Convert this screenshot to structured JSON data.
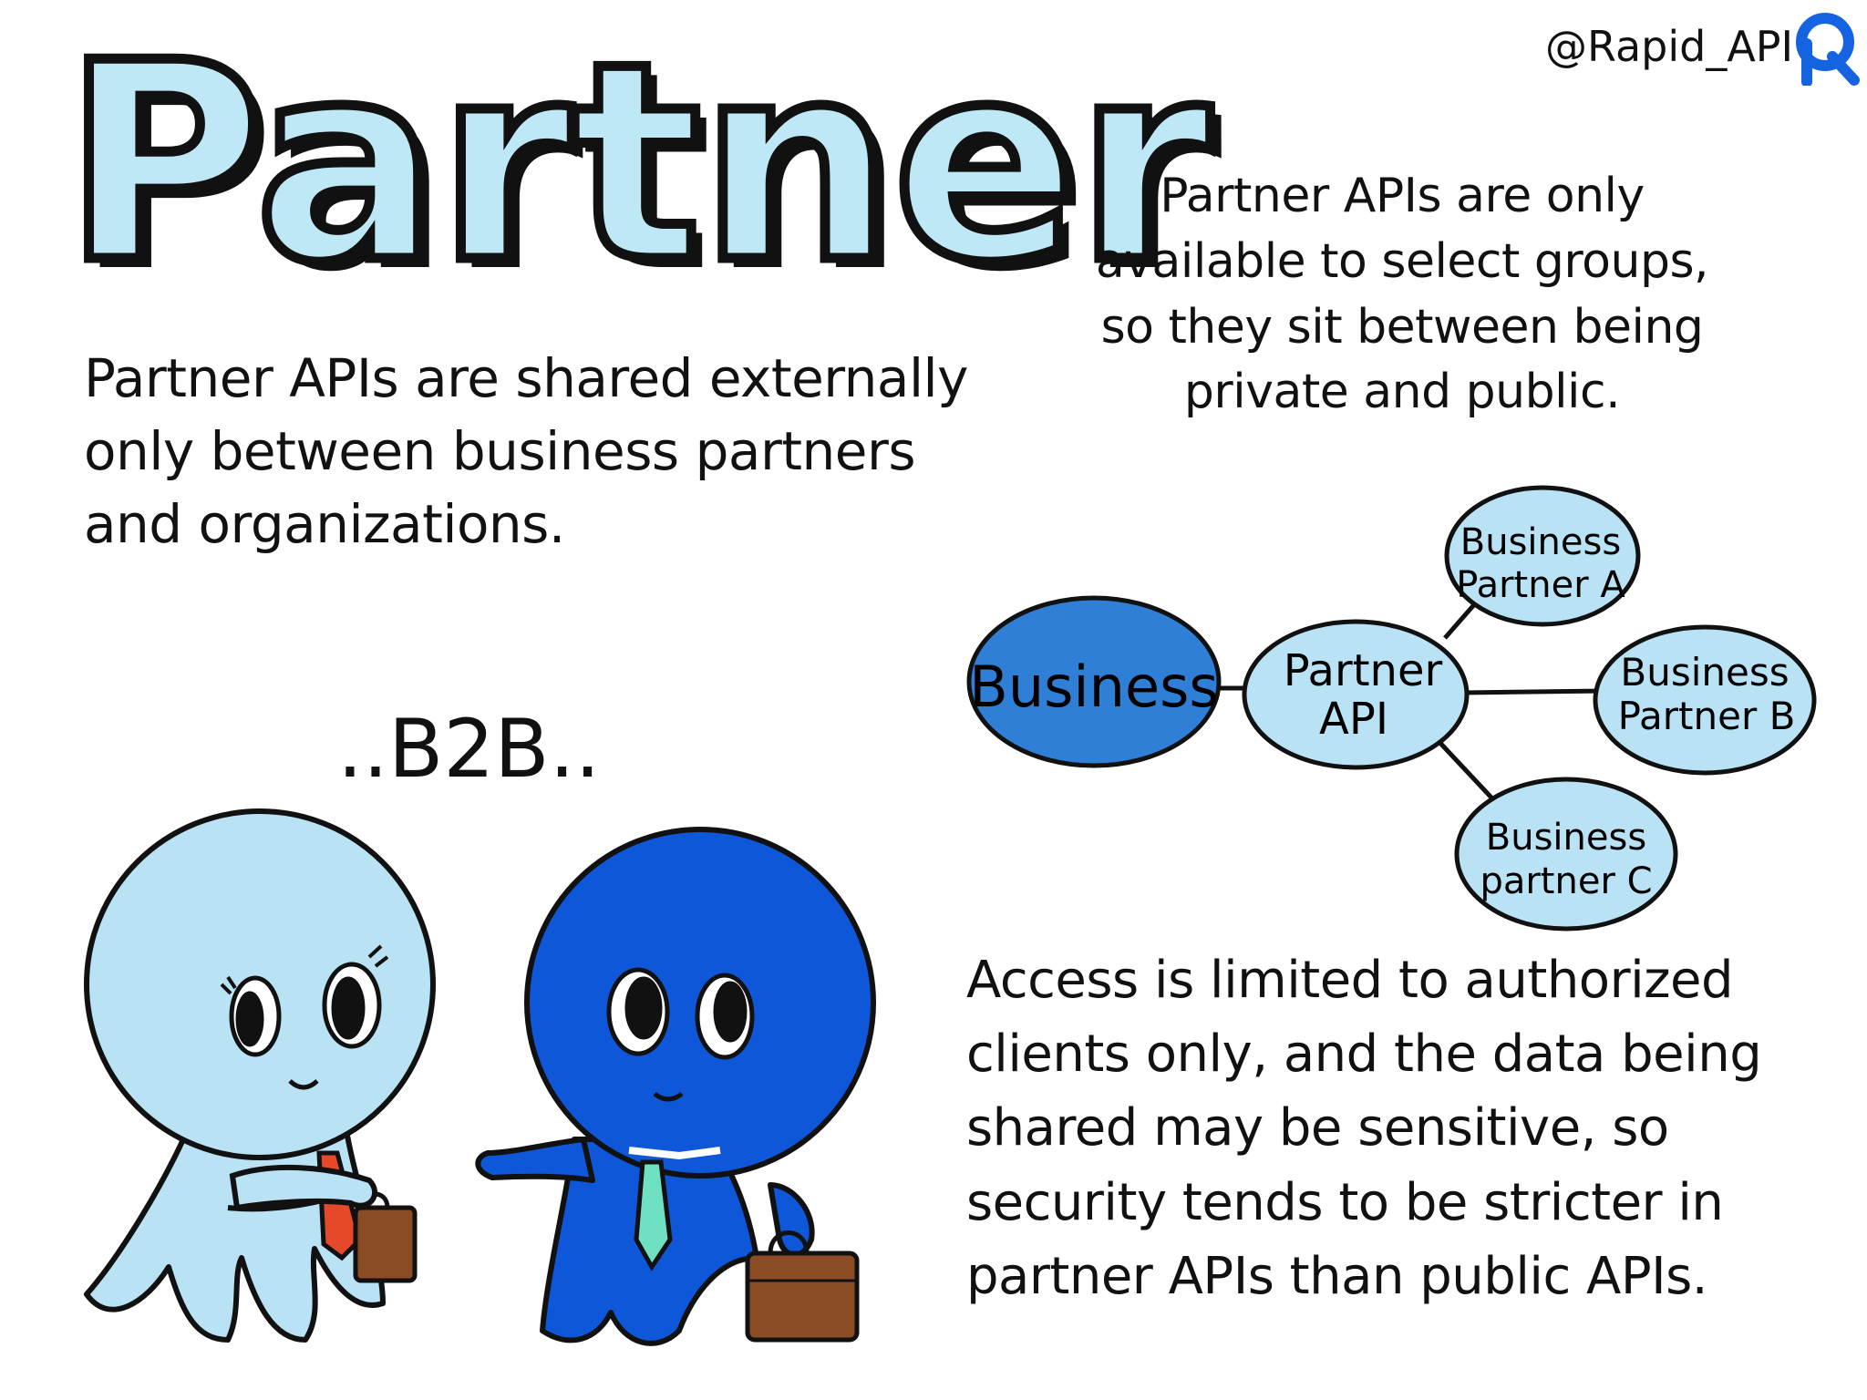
{
  "title": "Partner",
  "handle": "@Rapid_API",
  "intro_text": "Partner APIs are shared externally only between business partners and organizations.",
  "groups_text": "Partner APIs are only available to select groups, so they sit between being private and public.",
  "access_text": "Access is limited to authorized clients only, and the data being shared may be sensitive, so security tends to be stricter in partner APIs than public APIs.",
  "b2b_label": "..B2B..",
  "diagram": {
    "business": "Business",
    "partner_api_line1": "Partner",
    "partner_api_line2": "API",
    "partner_a_line1": "Business",
    "partner_a_line2": "Partner A",
    "partner_b_line1": "Business",
    "partner_b_line2": "Partner B",
    "partner_c_line1": "Business",
    "partner_c_line2": "partner C"
  },
  "colors": {
    "light_blue": "#b9e2f4",
    "dark_blue": "#0d57d8",
    "business_node": "#2f7fd6",
    "tie_red": "#e6482a",
    "tie_green": "#6fe0c2",
    "briefcase": "#8a4b25"
  }
}
